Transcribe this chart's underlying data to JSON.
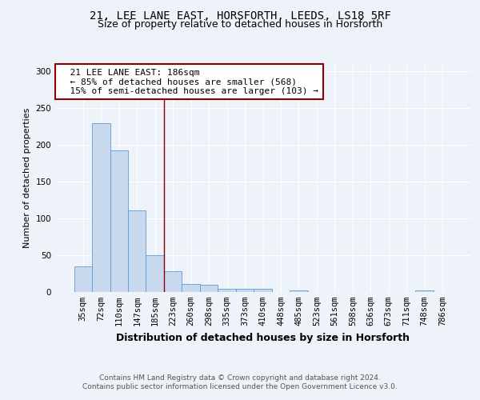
{
  "title1": "21, LEE LANE EAST, HORSFORTH, LEEDS, LS18 5RF",
  "title2": "Size of property relative to detached houses in Horsforth",
  "xlabel": "Distribution of detached houses by size in Horsforth",
  "ylabel": "Number of detached properties",
  "categories": [
    "35sqm",
    "72sqm",
    "110sqm",
    "147sqm",
    "185sqm",
    "223sqm",
    "260sqm",
    "298sqm",
    "335sqm",
    "373sqm",
    "410sqm",
    "448sqm",
    "485sqm",
    "523sqm",
    "561sqm",
    "598sqm",
    "636sqm",
    "673sqm",
    "711sqm",
    "748sqm",
    "786sqm"
  ],
  "values": [
    35,
    230,
    193,
    111,
    50,
    28,
    11,
    10,
    4,
    4,
    4,
    0,
    2,
    0,
    0,
    0,
    0,
    0,
    0,
    2,
    0
  ],
  "bar_color": "#c8d9ed",
  "bar_edge_color": "#5b9bd5",
  "vline_x": 4.5,
  "vline_color": "#8b0000",
  "annotation_text": "  21 LEE LANE EAST: 186sqm\n  ← 85% of detached houses are smaller (568)\n  15% of semi-detached houses are larger (103) →",
  "annotation_box_color": "white",
  "annotation_box_edge_color": "#8b0000",
  "ylim": [
    0,
    310
  ],
  "yticks": [
    0,
    50,
    100,
    150,
    200,
    250,
    300
  ],
  "footer": "Contains HM Land Registry data © Crown copyright and database right 2024.\nContains public sector information licensed under the Open Government Licence v3.0.",
  "background_color": "#eef2f9",
  "grid_color": "white",
  "title1_fontsize": 10,
  "title2_fontsize": 9,
  "xlabel_fontsize": 9,
  "ylabel_fontsize": 8,
  "tick_fontsize": 7.5,
  "annotation_fontsize": 8,
  "footer_fontsize": 6.5
}
